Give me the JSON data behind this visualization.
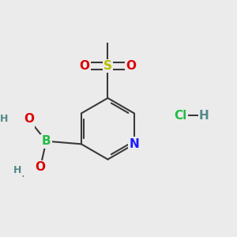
{
  "background_color": "#ebebeb",
  "fig_size": [
    3.0,
    3.0
  ],
  "dpi": 100,
  "bond_color": "#3a3a3a",
  "bond_width": 1.5,
  "colors": {
    "N": "#1a1aff",
    "B": "#22bb44",
    "S": "#bbbb00",
    "O": "#dd0000",
    "H": "#558888",
    "Cl": "#22bb44",
    "C": "#3a3a3a"
  },
  "font_size": 11,
  "font_size_small": 9
}
